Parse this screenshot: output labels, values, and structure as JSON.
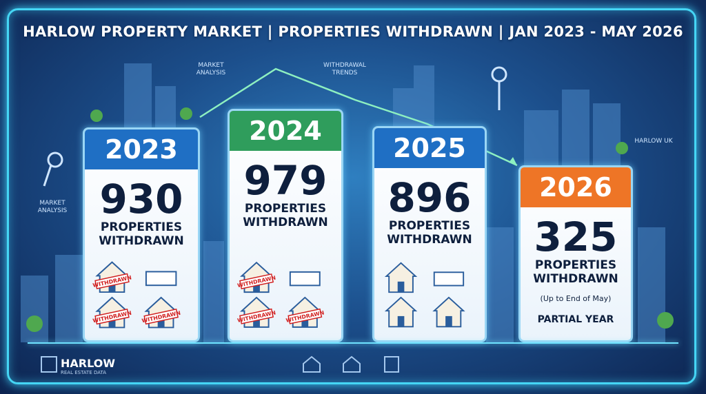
{
  "header": {
    "title": "HARLOW PROPERTY MARKET | PROPERTIES WITHDRAWN | JAN 2023 - MAY 2026"
  },
  "annotations": {
    "market_analysis_top": "MARKET ANALYSIS",
    "withdrawal_trends": "WITHDRAWAL TRENDS",
    "harlow_uk": "HARLOW UK",
    "market_analysis_left": "MARKET ANALYSIS"
  },
  "stamp_text": "WITHDRAWN",
  "cards": [
    {
      "year": "2023",
      "count": 930,
      "label": "PROPERTIES WITHDRAWN"
    },
    {
      "year": "2024",
      "count": 979,
      "label": "PROPERTIES WITHDRAWN"
    },
    {
      "year": "2025",
      "count": 896,
      "label": "PROPERTIES WITHDRAWN"
    },
    {
      "year": "2026",
      "count": 325,
      "label": "PROPERTIES WITHDRAWN",
      "note": "(Up to End of May)",
      "footer": "PARTIAL YEAR"
    }
  ],
  "logo": {
    "name": "HARLOW",
    "tagline": "REAL ESTATE DATA"
  }
}
